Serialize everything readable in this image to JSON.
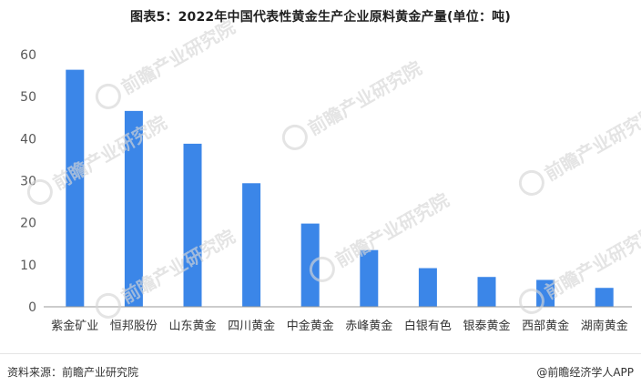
{
  "title": "图表5：2022年中国代表性黄金生产企业原料黄金产量(单位：吨)",
  "footer": {
    "source": "资料来源：前瞻产业研究院",
    "credit": "@前瞻经济学人APP"
  },
  "watermark": {
    "text": "前瞻产业研究院"
  },
  "colors": {
    "bar": "#3b86e8",
    "axis": "#999999",
    "tick_text": "#595959"
  },
  "chart_data": {
    "type": "bar",
    "title": "图表5：2022年中国代表性黄金生产企业原料黄金产量(单位：吨)",
    "xlabel": "",
    "ylabel": "",
    "ylim": [
      0,
      60
    ],
    "yticks": [
      0,
      10,
      20,
      30,
      40,
      50,
      60
    ],
    "categories": [
      "紫金矿业",
      "恒邦股份",
      "山东黄金",
      "四川黄金",
      "中金黄金",
      "赤峰黄金",
      "白银有色",
      "银泰黄金",
      "西部黄金",
      "湖南黄金"
    ],
    "values": [
      56.4,
      46.6,
      38.8,
      29.4,
      19.8,
      13.5,
      9.2,
      7.1,
      6.4,
      4.5
    ],
    "grid": false,
    "legend": "none"
  }
}
